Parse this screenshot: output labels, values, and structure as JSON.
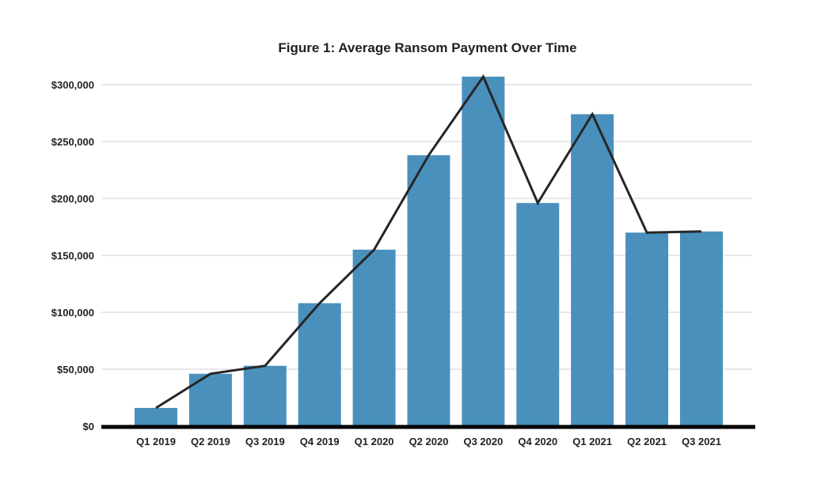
{
  "chart_data": {
    "type": "bar",
    "title": "Figure 1: Average Ransom Payment Over Time",
    "xlabel": "",
    "ylabel": "",
    "categories": [
      "Q1 2019",
      "Q2 2019",
      "Q3 2019",
      "Q4 2019",
      "Q1 2020",
      "Q2 2020",
      "Q3 2020",
      "Q4 2020",
      "Q1 2021",
      "Q2 2021",
      "Q3 2021"
    ],
    "series": [
      {
        "type": "bar",
        "values": [
          16000,
          46000,
          53000,
          108000,
          155000,
          238000,
          307000,
          196000,
          274000,
          170000,
          171000
        ]
      },
      {
        "type": "line",
        "values": [
          16000,
          46000,
          53000,
          108000,
          155000,
          238000,
          307000,
          196000,
          274000,
          170000,
          171000
        ]
      }
    ],
    "ylim": [
      0,
      300000
    ],
    "yticks": [
      0,
      50000,
      100000,
      150000,
      200000,
      250000,
      300000
    ],
    "ytick_labels": [
      "$0",
      "$50,000",
      "$100,000",
      "$150,000",
      "$200,000",
      "$250,000",
      "$300,000"
    ],
    "grid": true,
    "legend": "none",
    "colors": {
      "bar": "#4a90bd",
      "line": "#262626",
      "grid": "#d0d0d0",
      "axis": "#000000"
    }
  }
}
